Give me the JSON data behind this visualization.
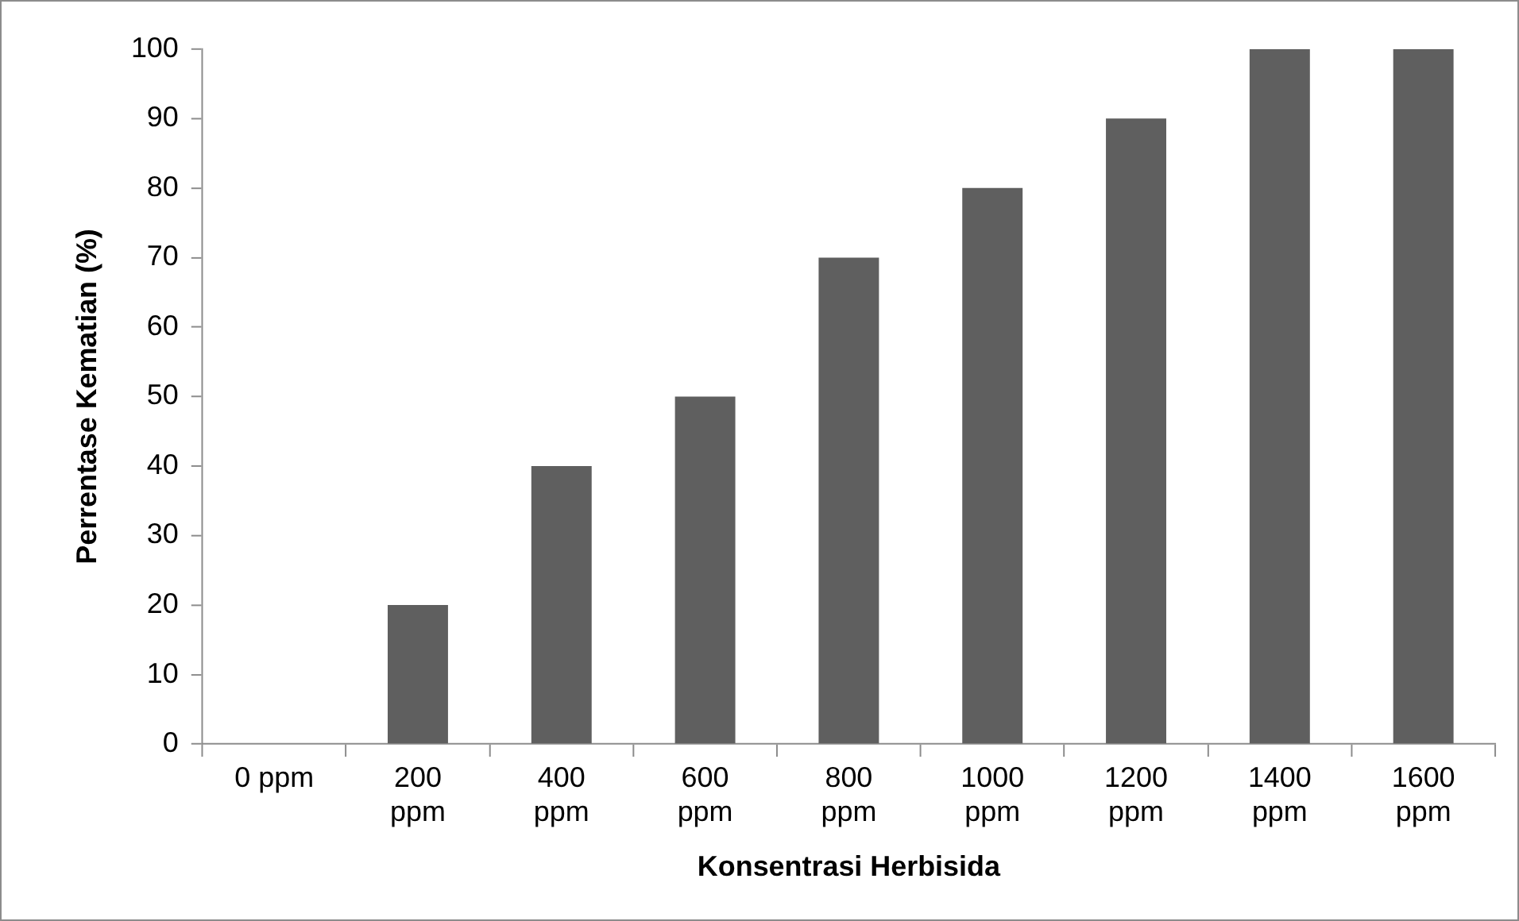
{
  "chart_data": {
    "type": "bar",
    "xlabel": "Konsentrasi Herbisida",
    "ylabel": "Perrentase Kematian (%)",
    "categories": [
      "0 ppm",
      "200 ppm",
      "400 ppm",
      "600 ppm",
      "800 ppm",
      "1000 ppm",
      "1200 ppm",
      "1400 ppm",
      "1600 ppm"
    ],
    "values": [
      0,
      20,
      40,
      50,
      70,
      80,
      90,
      100,
      100
    ],
    "color": "#5f5f5f",
    "ylim": [
      0,
      100
    ],
    "yticks": [
      0,
      10,
      20,
      30,
      40,
      50,
      60,
      70,
      80,
      90,
      100
    ],
    "grid": false,
    "legend": false
  }
}
